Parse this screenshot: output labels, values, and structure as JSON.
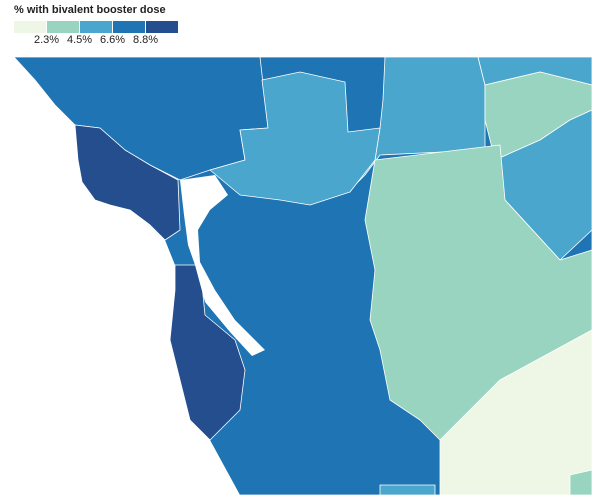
{
  "legend": {
    "title": "% with bivalent booster dose",
    "colors": [
      "#eef7e5",
      "#98d4c0",
      "#4aa6cc",
      "#1f74b4",
      "#244e8e"
    ],
    "ticks": [
      {
        "value": 2.3,
        "label": "2.3%"
      },
      {
        "value": 4.5,
        "label": "4.5%"
      },
      {
        "value": 6.6,
        "label": "6.6%"
      },
      {
        "value": 8.8,
        "label": "8.8%"
      }
    ]
  }
}
